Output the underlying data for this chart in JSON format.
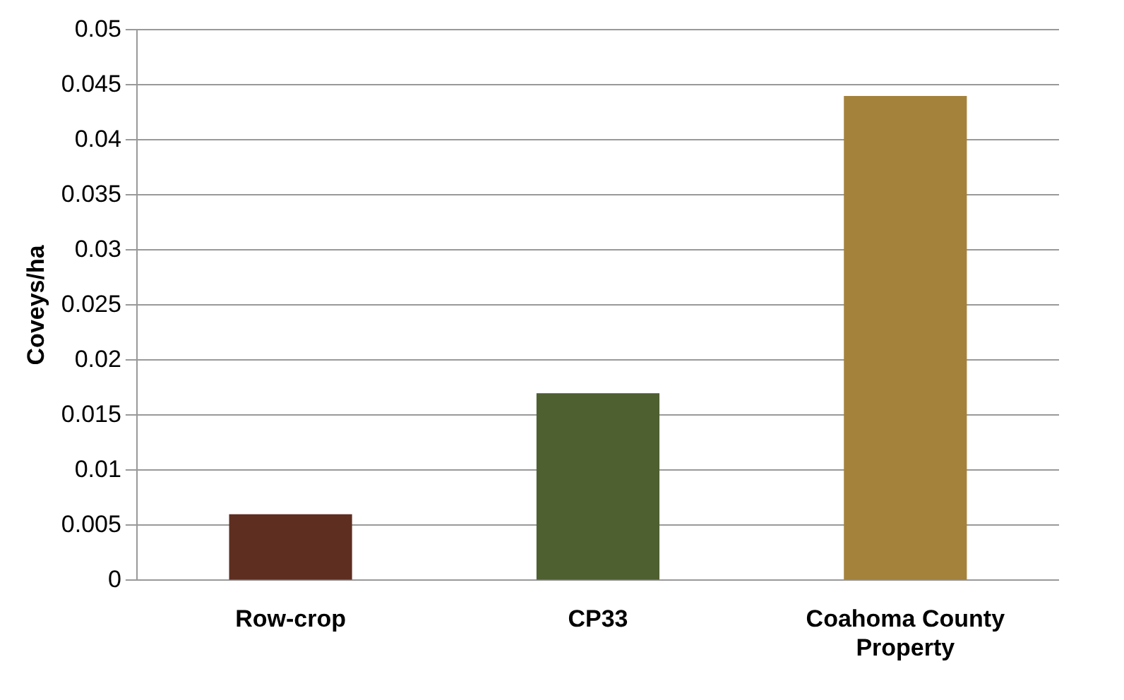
{
  "chart_data": {
    "type": "bar",
    "ylabel": "Coveys/ha",
    "categories": [
      "Row-crop",
      "CP33",
      "Coahoma County Property"
    ],
    "values": [
      0.006,
      0.017,
      0.044
    ],
    "colors": [
      "#5e2e20",
      "#4e5f30",
      "#a4823c"
    ],
    "ylim": [
      0,
      0.05
    ],
    "yticks": [
      0,
      0.005,
      0.01,
      0.015,
      0.02,
      0.025,
      0.03,
      0.035,
      0.04,
      0.045,
      0.05
    ],
    "grid": "y",
    "legend": false
  }
}
